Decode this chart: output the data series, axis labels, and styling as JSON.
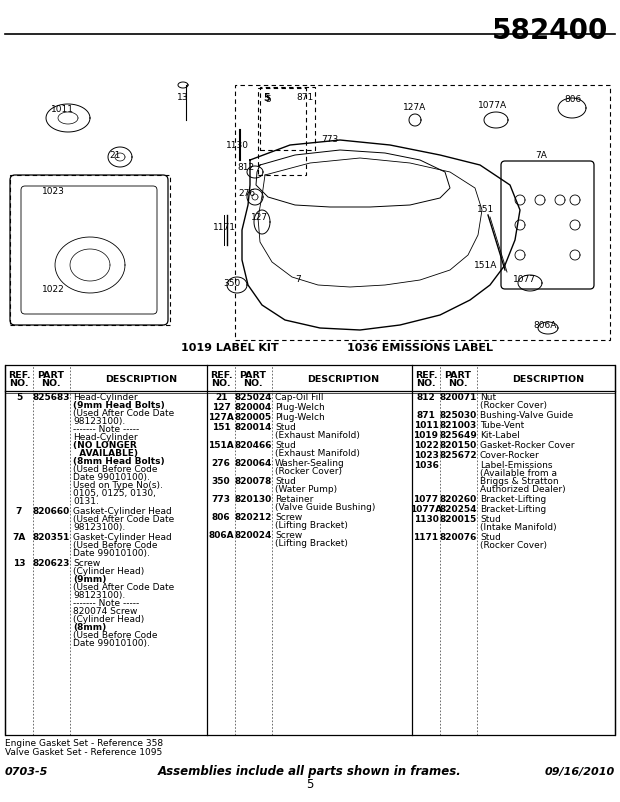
{
  "title": "582400",
  "diagram_label_left": "1019 LABEL KIT",
  "diagram_label_right": "1036 EMISSIONS LABEL",
  "footer_left": "0703-5",
  "footer_center": "Assemblies include all parts shown in frames.",
  "footer_page": "5",
  "footer_right": "09/16/2010",
  "footer_note1": "Engine Gasket Set - Reference 358",
  "footer_note2": "Valve Gasket Set - Reference 1095",
  "bg_color": "#ffffff",
  "col1_items": [
    {
      "ref": "5",
      "part": "825683",
      "lines": [
        [
          "Head-Cylinder",
          false
        ],
        [
          "(9mm Head Bolts)",
          true
        ],
        [
          "(Used After Code Date",
          false
        ],
        [
          "98123100).",
          false
        ],
        [
          "------- Note -----",
          false
        ],
        [
          "Head-Cylinder",
          false
        ],
        [
          "(NO LONGER",
          true
        ],
        [
          "  AVAILABLE)",
          true
        ],
        [
          "(8mm Head Bolts)",
          true
        ],
        [
          "(Used Before Code",
          false
        ],
        [
          "Date 99010100).",
          false
        ],
        [
          "Used on Type No(s).",
          false
        ],
        [
          "0105, 0125, 0130,",
          false
        ],
        [
          "0131.",
          false
        ]
      ]
    },
    {
      "ref": "7",
      "part": "820660",
      "lines": [
        [
          "Gasket-Cylinder Head",
          false
        ],
        [
          "(Used After Code Date",
          false
        ],
        [
          "98123100).",
          false
        ]
      ]
    },
    {
      "ref": "7A",
      "part": "820351",
      "lines": [
        [
          "Gasket-Cylinder Head",
          false
        ],
        [
          "(Used Before Code",
          false
        ],
        [
          "Date 99010100).",
          false
        ]
      ]
    },
    {
      "ref": "13",
      "part": "820623",
      "lines": [
        [
          "Screw",
          false
        ],
        [
          "(Cylinder Head)",
          false
        ],
        [
          "(9mm)",
          true
        ],
        [
          "(Used After Code Date",
          false
        ],
        [
          "98123100).",
          false
        ],
        [
          "------- Note -----",
          false
        ],
        [
          "820074 Screw",
          false
        ],
        [
          "(Cylinder Head)",
          false
        ],
        [
          "(8mm)",
          true
        ],
        [
          "(Used Before Code",
          false
        ],
        [
          "Date 99010100).",
          false
        ]
      ]
    }
  ],
  "col2_items": [
    {
      "ref": "21",
      "part": "825024",
      "lines": [
        [
          "Cap-Oil Fill",
          false
        ]
      ]
    },
    {
      "ref": "127",
      "part": "820004",
      "lines": [
        [
          "Plug-Welch",
          false
        ]
      ]
    },
    {
      "ref": "127A",
      "part": "820005",
      "lines": [
        [
          "Plug-Welch",
          false
        ]
      ]
    },
    {
      "ref": "151",
      "part": "820014",
      "lines": [
        [
          "Stud",
          false
        ],
        [
          "(Exhaust Manifold)",
          false
        ]
      ]
    },
    {
      "ref": "151A",
      "part": "820466",
      "lines": [
        [
          "Stud",
          false
        ],
        [
          "(Exhaust Manifold)",
          false
        ]
      ]
    },
    {
      "ref": "276",
      "part": "820064",
      "lines": [
        [
          "Washer-Sealing",
          false
        ],
        [
          "(Rocker Cover)",
          false
        ]
      ]
    },
    {
      "ref": "350",
      "part": "820078",
      "lines": [
        [
          "Stud",
          false
        ],
        [
          "(Water Pump)",
          false
        ]
      ]
    },
    {
      "ref": "773",
      "part": "820130",
      "lines": [
        [
          "Retainer",
          false
        ],
        [
          "(Valve Guide Bushing)",
          false
        ]
      ]
    },
    {
      "ref": "806",
      "part": "820212",
      "lines": [
        [
          "Screw",
          false
        ],
        [
          "(Lifting Bracket)",
          false
        ]
      ]
    },
    {
      "ref": "806A",
      "part": "820024",
      "lines": [
        [
          "Screw",
          false
        ],
        [
          "(Lifting Bracket)",
          false
        ]
      ]
    }
  ],
  "col3_items": [
    {
      "ref": "812",
      "part": "820071",
      "lines": [
        [
          "Nut",
          false
        ],
        [
          "(Rocker Cover)",
          false
        ]
      ]
    },
    {
      "ref": "871",
      "part": "825030",
      "lines": [
        [
          "Bushing-Valve Guide",
          false
        ]
      ]
    },
    {
      "ref": "1011",
      "part": "821003",
      "lines": [
        [
          "Tube-Vent",
          false
        ]
      ]
    },
    {
      "ref": "1019",
      "part": "825649",
      "lines": [
        [
          "Kit-Label",
          false
        ]
      ]
    },
    {
      "ref": "1022",
      "part": "820150",
      "lines": [
        [
          "Gasket-Rocker Cover",
          false
        ]
      ]
    },
    {
      "ref": "1023",
      "part": "825672",
      "lines": [
        [
          "Cover-Rocker",
          false
        ]
      ]
    },
    {
      "ref": "1036",
      "part": "",
      "lines": [
        [
          "Label-Emissions",
          false
        ],
        [
          "(Available from a",
          false
        ],
        [
          "Briggs & Stratton",
          false
        ],
        [
          "Authorized Dealer)",
          false
        ]
      ]
    },
    {
      "ref": "1077",
      "part": "820260",
      "lines": [
        [
          "Bracket-Lifting",
          false
        ]
      ]
    },
    {
      "ref": "1077A",
      "part": "820254",
      "lines": [
        [
          "Bracket-Lifting",
          false
        ]
      ]
    },
    {
      "ref": "1130",
      "part": "820015",
      "lines": [
        [
          "Stud",
          false
        ],
        [
          "(Intake Manifold)",
          false
        ]
      ]
    },
    {
      "ref": "1171",
      "part": "820076",
      "lines": [
        [
          "Stud",
          false
        ],
        [
          "(Rocker Cover)",
          false
        ]
      ]
    }
  ]
}
